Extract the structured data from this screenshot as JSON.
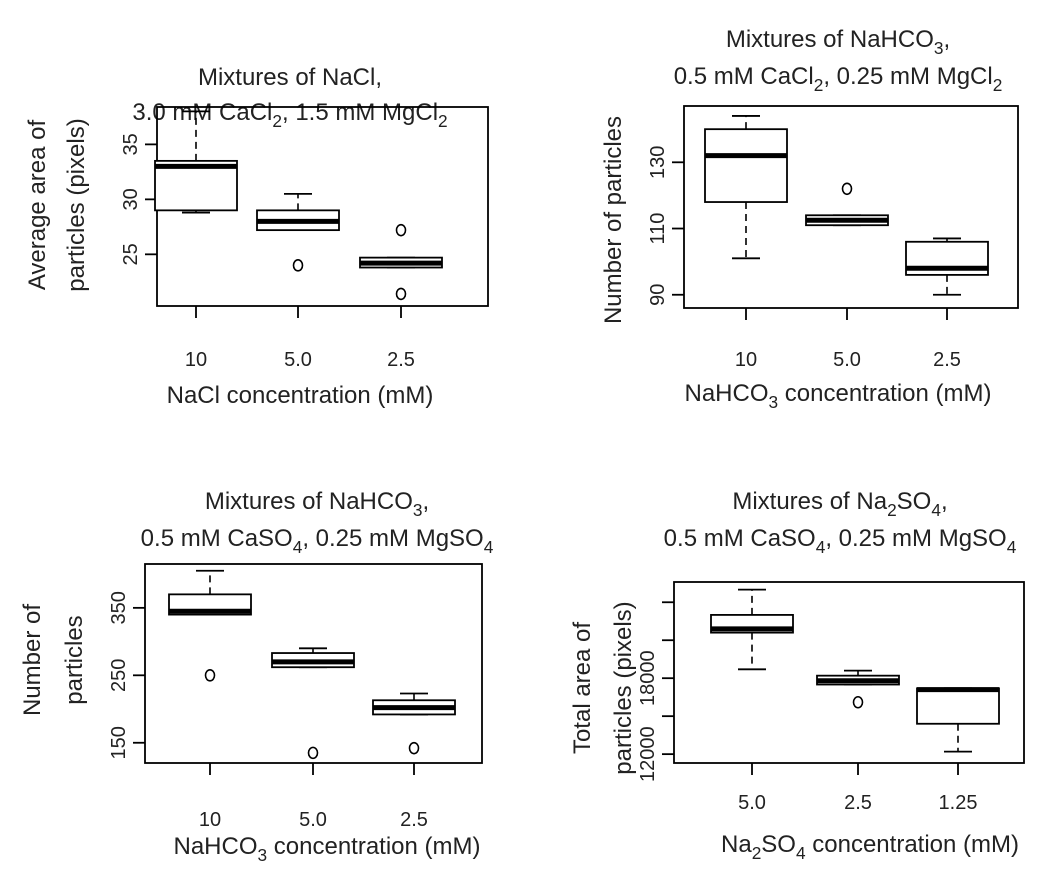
{
  "chart_data": [
    {
      "type": "box",
      "title": [
        [
          {
            "t": "Mixtures of NaCl,"
          }
        ],
        [
          {
            "t": "3.0 mM CaCl"
          },
          {
            "t": "2",
            "sub": true
          },
          {
            "t": ", 1.5 mM MgCl"
          },
          {
            "t": "2",
            "sub": true
          }
        ]
      ],
      "xlabel": [
        {
          "t": "NaCl concentration (mM)"
        }
      ],
      "ylabel": [
        [
          {
            "t": "Average area of"
          }
        ],
        [
          {
            "t": "particles (pixels)"
          }
        ]
      ],
      "categories": [
        "10",
        "5.0",
        "2.5"
      ],
      "yticks": [
        25,
        30,
        35
      ],
      "ylim": [
        20.3,
        38.4
      ],
      "boxes": [
        {
          "whisker_low": 28.8,
          "q1": 29.0,
          "median": 33.0,
          "q3": 33.5,
          "whisker_high": 38.0,
          "outliers": []
        },
        {
          "whisker_low": 27.2,
          "q1": 27.2,
          "median": 28.0,
          "q3": 29.0,
          "whisker_high": 30.5,
          "outliers": [
            24.0
          ]
        },
        {
          "whisker_low": 23.8,
          "q1": 23.8,
          "median": 24.2,
          "q3": 24.7,
          "whisker_high": 24.7,
          "outliers": [
            27.2,
            21.4
          ]
        }
      ]
    },
    {
      "type": "box",
      "title": [
        [
          {
            "t": "Mixtures of NaHCO"
          },
          {
            "t": "3",
            "sub": true
          },
          {
            "t": ","
          }
        ],
        [
          {
            "t": "0.5 mM CaCl"
          },
          {
            "t": "2",
            "sub": true
          },
          {
            "t": ", 0.25 mM MgCl"
          },
          {
            "t": "2",
            "sub": true
          }
        ]
      ],
      "xlabel": [
        {
          "t": "NaHCO"
        },
        {
          "t": "3",
          "sub": true
        },
        {
          "t": " concentration (mM)"
        }
      ],
      "ylabel": [
        [
          {
            "t": "Number of particles"
          }
        ]
      ],
      "categories": [
        "10",
        "5.0",
        "2.5"
      ],
      "yticks": [
        90,
        110,
        130
      ],
      "ylim": [
        86.0,
        147.0
      ],
      "boxes": [
        {
          "whisker_low": 101.0,
          "q1": 118.0,
          "median": 132.0,
          "q3": 140.0,
          "whisker_high": 144.0,
          "outliers": []
        },
        {
          "whisker_low": 111.0,
          "q1": 111.0,
          "median": 112.5,
          "q3": 114.0,
          "whisker_high": 114.0,
          "outliers": [
            122.0
          ]
        },
        {
          "whisker_low": 90.0,
          "q1": 96.0,
          "median": 98.0,
          "q3": 106.0,
          "whisker_high": 107.0,
          "outliers": []
        }
      ]
    },
    {
      "type": "box",
      "title": [
        [
          {
            "t": "Mixtures of NaHCO"
          },
          {
            "t": "3",
            "sub": true
          },
          {
            "t": ","
          }
        ],
        [
          {
            "t": "0.5 mM CaSO"
          },
          {
            "t": "4",
            "sub": true
          },
          {
            "t": ", 0.25 mM MgSO"
          },
          {
            "t": "4",
            "sub": true
          }
        ]
      ],
      "xlabel": [
        {
          "t": "NaHCO"
        },
        {
          "t": "3",
          "sub": true
        },
        {
          "t": " concentration (mM)"
        }
      ],
      "ylabel": [
        [
          {
            "t": "Number of"
          }
        ],
        [
          {
            "t": "particles"
          }
        ]
      ],
      "categories": [
        "10",
        "5.0",
        "2.5"
      ],
      "yticks": [
        150,
        250,
        350
      ],
      "ylim": [
        120.0,
        415.0
      ],
      "boxes": [
        {
          "whisker_low": 340.0,
          "q1": 340.0,
          "median": 345.0,
          "q3": 370.0,
          "whisker_high": 405.0,
          "outliers": [
            250.0
          ]
        },
        {
          "whisker_low": 262.0,
          "q1": 262.0,
          "median": 270.0,
          "q3": 283.0,
          "whisker_high": 290.0,
          "outliers": [
            135.0
          ]
        },
        {
          "whisker_low": 192.0,
          "q1": 192.0,
          "median": 202.0,
          "q3": 213.0,
          "whisker_high": 223.0,
          "outliers": [
            142.0
          ]
        }
      ]
    },
    {
      "type": "box",
      "title": [
        [
          {
            "t": "Mixtures of Na"
          },
          {
            "t": "2",
            "sub": true
          },
          {
            "t": "SO"
          },
          {
            "t": "4",
            "sub": true
          },
          {
            "t": ","
          }
        ],
        [
          {
            "t": "0.5 mM CaSO"
          },
          {
            "t": "4",
            "sub": true
          },
          {
            "t": ", 0.25 mM MgSO"
          },
          {
            "t": "4",
            "sub": true
          }
        ]
      ],
      "xlabel": [
        {
          "t": "Na"
        },
        {
          "t": "2",
          "sub": true
        },
        {
          "t": "SO"
        },
        {
          "t": "4",
          "sub": true
        },
        {
          "t": " concentration (mM)"
        }
      ],
      "ylabel": [
        [
          {
            "t": "Total area of"
          }
        ],
        [
          {
            "t": "particles (pixels)"
          }
        ]
      ],
      "categories": [
        "5.0",
        "2.5",
        "1.25"
      ],
      "yticks": [
        12000,
        18000
      ],
      "yticks_unlabeled": [
        15000,
        21000,
        24000
      ],
      "ylim": [
        11300.0,
        25600.0
      ],
      "boxes": [
        {
          "whisker_low": 18700.0,
          "q1": 21600.0,
          "median": 21900.0,
          "q3": 23000.0,
          "whisker_high": 25000.0,
          "outliers": []
        },
        {
          "whisker_low": 17500.0,
          "q1": 17500.0,
          "median": 17800.0,
          "q3": 18200.0,
          "whisker_high": 18600.0,
          "outliers": [
            16100.0
          ]
        },
        {
          "whisker_low": 12200.0,
          "q1": 14400.0,
          "median": 17100.0,
          "q3": 17200.0,
          "whisker_high": 17200.0,
          "outliers": []
        }
      ]
    }
  ]
}
